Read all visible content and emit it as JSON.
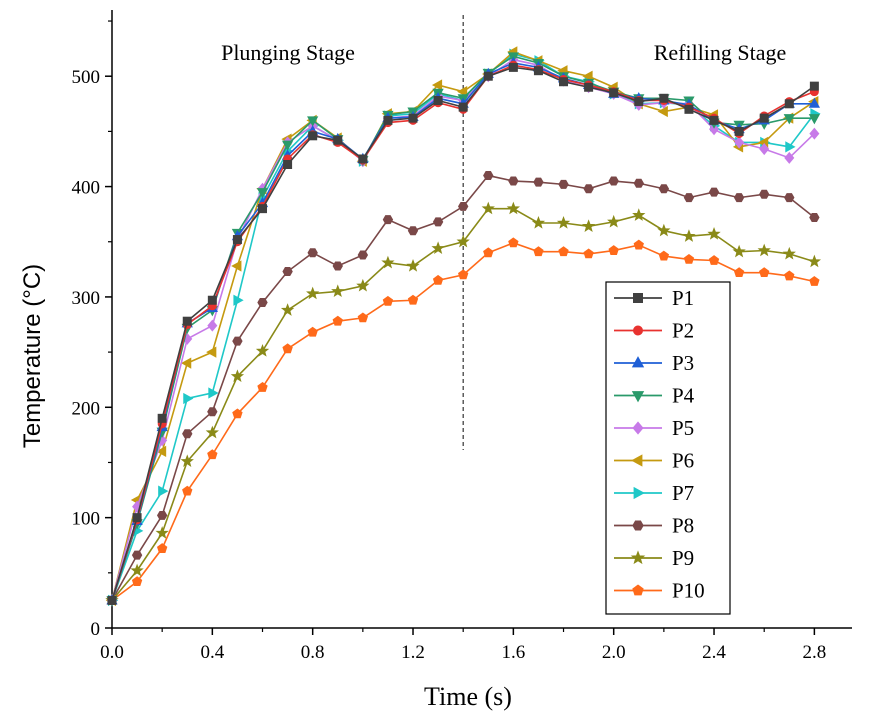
{
  "chart_data": {
    "type": "line",
    "xlabel": "Time (s)",
    "ylabel": "Temperature (°C)",
    "xlim": [
      0,
      2.95
    ],
    "ylim": [
      0,
      560
    ],
    "xticks": [
      "0.0",
      "0.4",
      "0.8",
      "1.2",
      "1.6",
      "2.0",
      "2.4",
      "2.8"
    ],
    "xtick_values": [
      0,
      0.4,
      0.8,
      1.2,
      1.6,
      2.0,
      2.4,
      2.8
    ],
    "yticks": [
      "0",
      "100",
      "200",
      "300",
      "400",
      "500"
    ],
    "ytick_values": [
      0,
      100,
      200,
      300,
      400,
      500
    ],
    "divider_x": 1.4,
    "annotations": [
      "Plunging Stage",
      "Refilling Stage"
    ],
    "legend_position": "lower-right",
    "x": [
      0,
      0.1,
      0.2,
      0.3,
      0.4,
      0.5,
      0.6,
      0.7,
      0.8,
      0.9,
      1.0,
      1.1,
      1.2,
      1.3,
      1.4,
      1.5,
      1.6,
      1.7,
      1.8,
      1.9,
      2.0,
      2.1,
      2.2,
      2.3,
      2.4,
      2.5,
      2.6,
      2.7,
      2.8
    ],
    "series": [
      {
        "name": "P1",
        "color": "#404040",
        "marker": "square",
        "values": [
          25,
          100,
          190,
          278,
          297,
          352,
          380,
          420,
          446,
          442,
          425,
          460,
          462,
          478,
          472,
          500,
          508,
          505,
          495,
          490,
          485,
          477,
          480,
          470,
          460,
          450,
          462,
          475,
          491
        ]
      },
      {
        "name": "P2",
        "color": "#e8322f",
        "marker": "circle",
        "values": [
          25,
          98,
          185,
          275,
          292,
          350,
          382,
          425,
          447,
          440,
          424,
          458,
          460,
          476,
          470,
          500,
          510,
          506,
          497,
          492,
          486,
          478,
          478,
          472,
          462,
          448,
          464,
          477,
          486
        ]
      },
      {
        "name": "P3",
        "color": "#1f5fd6",
        "marker": "triangle-up",
        "values": [
          25,
          97,
          182,
          276,
          290,
          355,
          385,
          428,
          450,
          443,
          425,
          462,
          463,
          480,
          475,
          502,
          512,
          508,
          498,
          492,
          484,
          480,
          478,
          474,
          460,
          452,
          460,
          475,
          475
        ]
      },
      {
        "name": "P4",
        "color": "#2a9a6a",
        "marker": "triangle-down",
        "values": [
          25,
          95,
          178,
          272,
          288,
          358,
          395,
          438,
          460,
          443,
          424,
          465,
          468,
          485,
          480,
          503,
          518,
          512,
          500,
          494,
          486,
          480,
          480,
          478,
          458,
          456,
          457,
          462,
          462
        ]
      },
      {
        "name": "P5",
        "color": "#c77ae8",
        "marker": "diamond",
        "values": [
          25,
          110,
          170,
          262,
          274,
          352,
          398,
          440,
          455,
          442,
          423,
          462,
          464,
          482,
          478,
          500,
          515,
          510,
          496,
          490,
          484,
          474,
          476,
          475,
          452,
          440,
          434,
          426,
          448
        ]
      },
      {
        "name": "P6",
        "color": "#c59a10",
        "marker": "triangle-left",
        "values": [
          25,
          116,
          160,
          240,
          250,
          328,
          398,
          443,
          460,
          444,
          423,
          466,
          468,
          492,
          486,
          502,
          522,
          514,
          505,
          500,
          490,
          475,
          468,
          472,
          465,
          436,
          440,
          462,
          477
        ]
      },
      {
        "name": "P7",
        "color": "#1fc8c8",
        "marker": "triangle-right",
        "values": [
          25,
          88,
          124,
          208,
          213,
          297,
          390,
          432,
          455,
          442,
          423,
          464,
          466,
          484,
          478,
          502,
          520,
          514,
          500,
          495,
          484,
          475,
          476,
          474,
          455,
          440,
          440,
          436,
          466
        ]
      },
      {
        "name": "P8",
        "color": "#7a4848",
        "marker": "hexagon",
        "values": [
          25,
          66,
          102,
          176,
          196,
          260,
          295,
          323,
          340,
          328,
          338,
          370,
          360,
          368,
          382,
          410,
          405,
          404,
          402,
          398,
          405,
          403,
          398,
          390,
          395,
          390,
          393,
          390,
          372
        ]
      },
      {
        "name": "P9",
        "color": "#8a8a18",
        "marker": "star",
        "values": [
          25,
          52,
          86,
          151,
          177,
          228,
          251,
          288,
          303,
          305,
          310,
          331,
          328,
          344,
          350,
          380,
          380,
          367,
          367,
          364,
          368,
          374,
          360,
          355,
          357,
          341,
          342,
          339,
          332
        ]
      },
      {
        "name": "P10",
        "color": "#ff6a1a",
        "marker": "pentagon",
        "values": [
          25,
          42,
          72,
          124,
          157,
          194,
          218,
          253,
          268,
          278,
          281,
          296,
          297,
          315,
          320,
          340,
          349,
          341,
          341,
          339,
          342,
          347,
          337,
          334,
          333,
          322,
          322,
          319,
          314
        ]
      }
    ]
  }
}
